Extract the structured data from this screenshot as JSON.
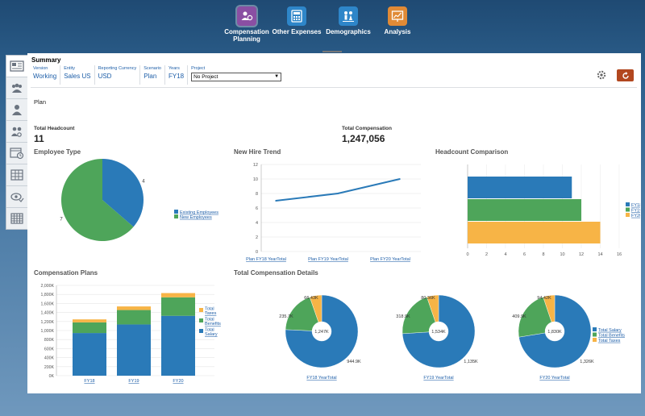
{
  "nav": {
    "items": [
      {
        "label_line1": "Compensation",
        "label_line2": "Planning",
        "color": "#8a4fa3",
        "icon": "people-money-icon"
      },
      {
        "label_line1": "Other Expenses",
        "label_line2": "",
        "color": "#2e86c9",
        "icon": "calculator-icon"
      },
      {
        "label_line1": "Demographics",
        "label_line2": "",
        "color": "#2e86c9",
        "icon": "demographics-icon"
      },
      {
        "label_line1": "Analysis",
        "label_line2": "",
        "color": "#e08a36",
        "icon": "chart-board-icon"
      }
    ]
  },
  "summary": {
    "title": "Summary",
    "pov": [
      {
        "label": "Version",
        "value": "Working"
      },
      {
        "label": "Entity",
        "value": "Sales US"
      },
      {
        "label": "Reporting Currency",
        "value": "USD"
      },
      {
        "label": "Scenario",
        "value": "Plan"
      },
      {
        "label": "Years",
        "value": "FY18"
      }
    ],
    "project_label": "Project",
    "project_value": "No Project"
  },
  "plan_label": "Plan",
  "kpis": {
    "headcount_label": "Total Headcount",
    "headcount_value": "11",
    "compensation_label": "Total Compensation",
    "compensation_value": "1,247,056"
  },
  "colors": {
    "blue": "#2a7ab8",
    "green": "#4ea55a",
    "orange": "#f7b446"
  },
  "chart_data": [
    {
      "id": "employee-type",
      "type": "pie",
      "title": "Employee Type",
      "series": [
        {
          "name": "Existing Employees",
          "value": 4,
          "label": "4"
        },
        {
          "name": "New Employees",
          "value": 7,
          "label": "7"
        }
      ]
    },
    {
      "id": "new-hire-trend",
      "type": "line",
      "title": "New Hire Trend",
      "categories": [
        "Plan FY18 YearTotal",
        "Plan FY19 YearTotal",
        "Plan FY20 YearTotal"
      ],
      "values": [
        7,
        8,
        10
      ],
      "ylim": [
        0,
        12
      ],
      "yticks": [
        "0",
        "2",
        "4",
        "6",
        "8",
        "10",
        "12"
      ]
    },
    {
      "id": "headcount-comparison",
      "type": "bar",
      "orientation": "horizontal",
      "title": "Headcount Comparison",
      "series": [
        {
          "name": "FY18-Plan",
          "value": 11
        },
        {
          "name": "FY19-Plan",
          "value": 12
        },
        {
          "name": "FY20-Plan",
          "value": 14
        }
      ],
      "xlim": [
        0,
        16
      ],
      "xticks": [
        "0",
        "2",
        "4",
        "6",
        "8",
        "10",
        "12",
        "14",
        "16"
      ]
    },
    {
      "id": "compensation-plans",
      "type": "bar",
      "stacked": true,
      "title": "Compensation Plans",
      "categories": [
        "FY18",
        "FY19",
        "FY20"
      ],
      "series": [
        {
          "name": "Total Salary",
          "values": [
            945,
            1135,
            1326
          ]
        },
        {
          "name": "Total Benefits",
          "values": [
            236,
            319,
            410
          ]
        },
        {
          "name": "Total Taxes",
          "values": [
            66,
            80,
            94
          ]
        }
      ],
      "legend": [
        {
          "line1": "Total",
          "line2": "Taxes"
        },
        {
          "line1": "Total",
          "line2": "Benefits"
        },
        {
          "line1": "Total",
          "line2": "Salary"
        }
      ],
      "ylim": [
        0,
        2000
      ],
      "yticks": [
        "0K",
        "200K",
        "400K",
        "600K",
        "800K",
        "1,000K",
        "1,200K",
        "1,400K",
        "1,600K",
        "1,800K",
        "2,000K"
      ]
    },
    {
      "id": "total-compensation-details",
      "type": "pie",
      "title": "Total Compensation Details",
      "legend": [
        "Total Salary",
        "Total Benefits",
        "Total Taxes"
      ],
      "donuts": [
        {
          "category": "FY18 YearTotal",
          "center": "1,247K",
          "values": [
            944.9,
            235.7,
            66.43
          ],
          "labels": [
            "944.9K",
            "235.7K",
            "66.43K"
          ]
        },
        {
          "category": "FY19 YearTotal",
          "center": "1,534K",
          "values": [
            1135,
            318.9,
            80.36
          ],
          "labels": [
            "1,135K",
            "318.9K",
            "80.36K"
          ]
        },
        {
          "category": "FY20 YearTotal",
          "center": "1,830K",
          "values": [
            1326,
            409.9,
            94.42
          ],
          "labels": [
            "1,326K",
            "409.9K",
            "94.42K"
          ]
        }
      ]
    }
  ]
}
